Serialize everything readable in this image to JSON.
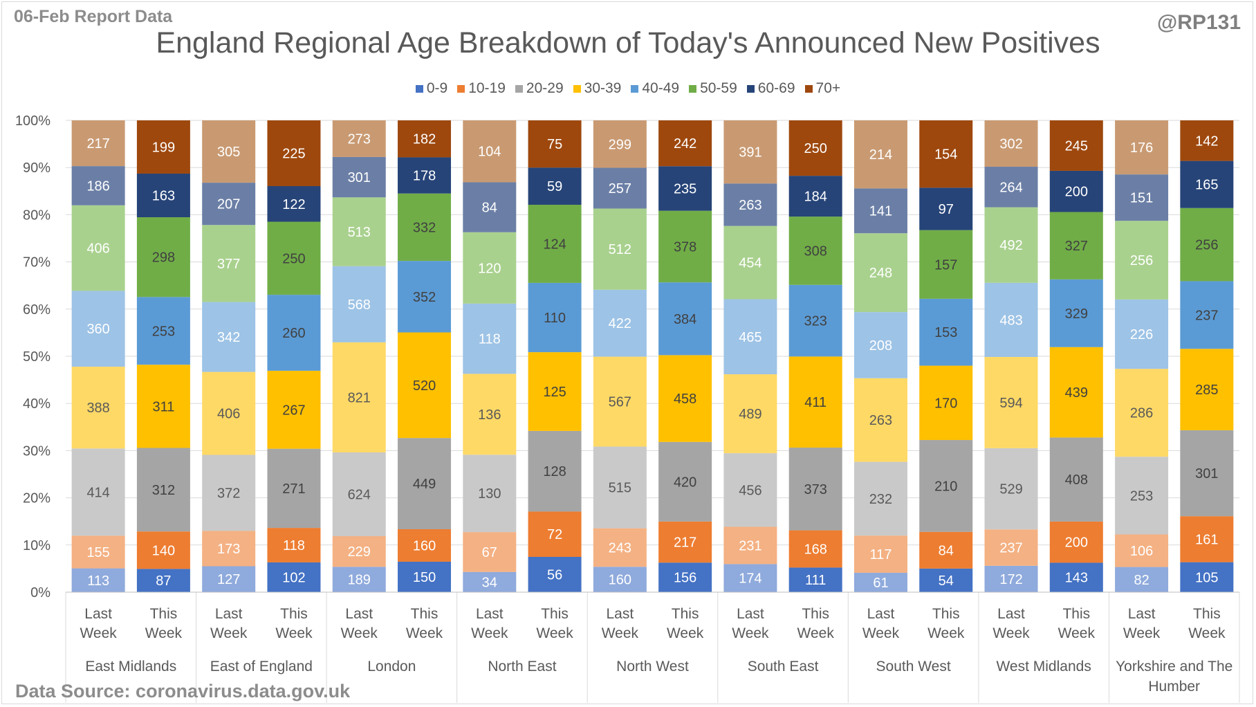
{
  "header": {
    "report_date": "06-Feb Report Data",
    "handle": "@RP131",
    "source": "Data Source: coronavirus.data.gov.uk"
  },
  "chart_data": {
    "type": "bar",
    "stacking": "percent",
    "title": "England Regional Age Breakdown of Today's Announced New Positives",
    "legend_position": "top",
    "grid": true,
    "ylim": [
      0,
      100
    ],
    "y_ticks": [
      "0%",
      "10%",
      "20%",
      "30%",
      "40%",
      "50%",
      "60%",
      "70%",
      "80%",
      "90%",
      "100%"
    ],
    "series_names": [
      "0-9",
      "10-19",
      "20-29",
      "30-39",
      "40-49",
      "50-59",
      "60-69",
      "70+"
    ],
    "colors_this_week": [
      "#4472c4",
      "#ed7d31",
      "#a5a5a5",
      "#ffc000",
      "#5b9bd5",
      "#70ad47",
      "#264478",
      "#9e480e"
    ],
    "colors_last_week": [
      "#8faadc",
      "#f4b183",
      "#c9c9c9",
      "#ffd966",
      "#9dc3e6",
      "#a9d18e",
      "#6b7fa6",
      "#c99a72"
    ],
    "subcategory_labels": [
      [
        "Last",
        "Week"
      ],
      [
        "This",
        "Week"
      ]
    ],
    "regions": [
      {
        "name": "East Midlands",
        "last_week": [
          113,
          155,
          414,
          388,
          360,
          406,
          186,
          217
        ],
        "this_week": [
          87,
          140,
          312,
          311,
          253,
          298,
          163,
          199
        ]
      },
      {
        "name": "East of England",
        "last_week": [
          127,
          173,
          372,
          406,
          342,
          377,
          207,
          305
        ],
        "this_week": [
          102,
          118,
          271,
          267,
          260,
          250,
          122,
          225
        ]
      },
      {
        "name": "London",
        "last_week": [
          189,
          229,
          624,
          821,
          568,
          513,
          301,
          273
        ],
        "this_week": [
          150,
          160,
          449,
          520,
          352,
          332,
          178,
          182
        ]
      },
      {
        "name": "North East",
        "last_week": [
          34,
          67,
          130,
          136,
          118,
          120,
          84,
          104
        ],
        "this_week": [
          56,
          72,
          128,
          125,
          110,
          124,
          59,
          75
        ]
      },
      {
        "name": "North West",
        "last_week": [
          160,
          243,
          515,
          567,
          422,
          512,
          257,
          299
        ],
        "this_week": [
          156,
          217,
          420,
          458,
          384,
          378,
          235,
          242
        ]
      },
      {
        "name": "South East",
        "last_week": [
          174,
          231,
          456,
          489,
          465,
          454,
          263,
          391
        ],
        "this_week": [
          111,
          168,
          373,
          411,
          323,
          308,
          184,
          250
        ]
      },
      {
        "name": "South West",
        "last_week": [
          61,
          117,
          232,
          263,
          208,
          248,
          141,
          214
        ],
        "this_week": [
          54,
          84,
          210,
          170,
          153,
          157,
          97,
          154
        ]
      },
      {
        "name": "West Midlands",
        "last_week": [
          172,
          237,
          529,
          594,
          483,
          492,
          264,
          302
        ],
        "this_week": [
          143,
          200,
          408,
          439,
          329,
          327,
          200,
          245
        ]
      },
      {
        "name": "Yorkshire and The Humber",
        "last_week": [
          82,
          106,
          253,
          286,
          226,
          256,
          151,
          176
        ],
        "this_week": [
          105,
          161,
          301,
          285,
          237,
          256,
          165,
          142
        ]
      }
    ]
  }
}
